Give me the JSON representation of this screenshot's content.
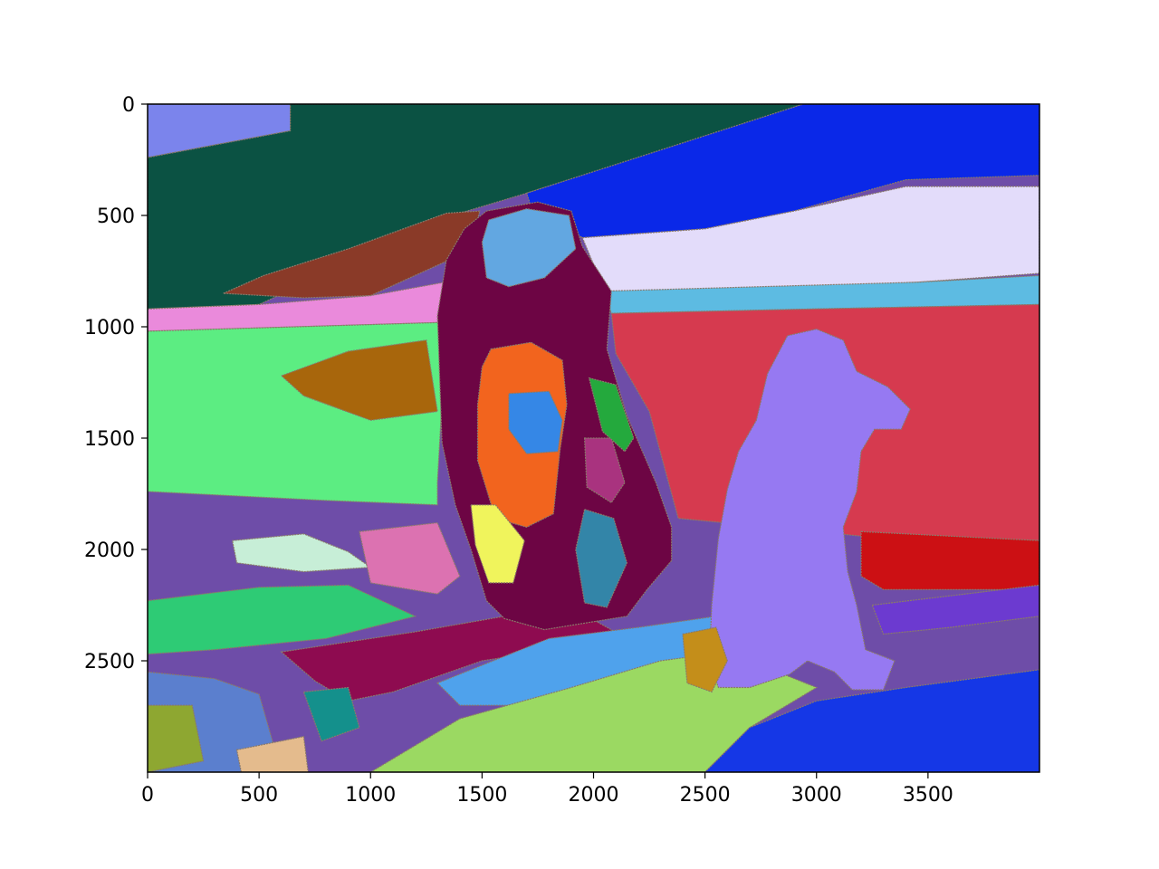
{
  "chart_data": {
    "type": "heatmap",
    "description_kind": "segmentation-label-image",
    "title": "",
    "xlabel": "",
    "ylabel": "",
    "xlim": [
      0,
      4000
    ],
    "ylim": [
      3000,
      0
    ],
    "x_ticks": [
      0,
      500,
      1000,
      1500,
      2000,
      2500,
      3000,
      3500
    ],
    "y_ticks": [
      0,
      500,
      1000,
      1500,
      2000,
      2500
    ],
    "x_tick_labels": [
      "0",
      "500",
      "1000",
      "1500",
      "2000",
      "2500",
      "3000",
      "3500"
    ],
    "y_tick_labels": [
      "0",
      "500",
      "1000",
      "1500",
      "2000",
      "2500"
    ],
    "grid": false,
    "colors": {
      "frame": "#000000",
      "background": "#ffffff"
    },
    "regions": [
      {
        "name": "top-left-sky",
        "color": "#7b84ec",
        "points": [
          [
            0,
            0
          ],
          [
            640,
            0
          ],
          [
            640,
            120
          ],
          [
            0,
            240
          ]
        ]
      },
      {
        "name": "dark-green-hill",
        "color": "#0b5243",
        "points": [
          [
            0,
            240
          ],
          [
            640,
            120
          ],
          [
            640,
            0
          ],
          [
            2940,
            0
          ],
          [
            2600,
            120
          ],
          [
            1700,
            400
          ],
          [
            1400,
            490
          ],
          [
            1100,
            650
          ],
          [
            800,
            760
          ],
          [
            500,
            900
          ],
          [
            0,
            920
          ]
        ]
      },
      {
        "name": "brown-band",
        "color": "#8a3a28",
        "points": [
          [
            340,
            850
          ],
          [
            520,
            770
          ],
          [
            900,
            650
          ],
          [
            1340,
            490
          ],
          [
            1490,
            480
          ],
          [
            1440,
            660
          ],
          [
            1000,
            860
          ],
          [
            700,
            870
          ]
        ]
      },
      {
        "name": "pink-strip",
        "color": "#ea8adb",
        "points": [
          [
            0,
            920
          ],
          [
            500,
            900
          ],
          [
            1000,
            860
          ],
          [
            1440,
            780
          ],
          [
            1340,
            980
          ],
          [
            0,
            1020
          ]
        ]
      },
      {
        "name": "blue-sky-right",
        "color": "#0a28e8",
        "points": [
          [
            1700,
            400
          ],
          [
            2940,
            0
          ],
          [
            4000,
            0
          ],
          [
            4000,
            320
          ],
          [
            3400,
            340
          ],
          [
            2900,
            480
          ],
          [
            2500,
            560
          ],
          [
            1950,
            600
          ],
          [
            1720,
            460
          ]
        ]
      },
      {
        "name": "lavender-water",
        "color": "#e3dcfa",
        "points": [
          [
            1950,
            600
          ],
          [
            2500,
            560
          ],
          [
            2900,
            480
          ],
          [
            3400,
            370
          ],
          [
            4000,
            370
          ],
          [
            4000,
            760
          ],
          [
            3450,
            800
          ],
          [
            2600,
            850
          ],
          [
            2050,
            840
          ]
        ]
      },
      {
        "name": "light-blue-strip",
        "color": "#5dbbe2",
        "points": [
          [
            2050,
            840
          ],
          [
            3450,
            800
          ],
          [
            4000,
            770
          ],
          [
            4000,
            900
          ],
          [
            3000,
            920
          ],
          [
            2080,
            940
          ]
        ]
      },
      {
        "name": "red-field",
        "color": "#d63a4f",
        "points": [
          [
            2080,
            940
          ],
          [
            3000,
            920
          ],
          [
            4000,
            900
          ],
          [
            4000,
            1960
          ],
          [
            3300,
            1950
          ],
          [
            3000,
            1920
          ],
          [
            2380,
            1860
          ],
          [
            2250,
            1380
          ],
          [
            2100,
            1120
          ]
        ]
      },
      {
        "name": "crimson-patch",
        "color": "#cc1014",
        "points": [
          [
            3200,
            1920
          ],
          [
            4000,
            1960
          ],
          [
            4000,
            2180
          ],
          [
            3300,
            2180
          ],
          [
            3200,
            2120
          ]
        ]
      },
      {
        "name": "green-field",
        "color": "#5ced82",
        "points": [
          [
            0,
            1020
          ],
          [
            1340,
            980
          ],
          [
            1300,
            1700
          ],
          [
            1300,
            1800
          ],
          [
            800,
            1780
          ],
          [
            0,
            1740
          ]
        ]
      },
      {
        "name": "ochre-patch",
        "color": "#a8660c",
        "points": [
          [
            600,
            1220
          ],
          [
            900,
            1110
          ],
          [
            1250,
            1060
          ],
          [
            1300,
            1380
          ],
          [
            1000,
            1420
          ],
          [
            700,
            1310
          ]
        ]
      },
      {
        "name": "pale-green-patch",
        "color": "#c7eed7",
        "points": [
          [
            380,
            1960
          ],
          [
            700,
            1930
          ],
          [
            900,
            2010
          ],
          [
            1000,
            2080
          ],
          [
            700,
            2100
          ],
          [
            400,
            2060
          ]
        ]
      },
      {
        "name": "rose-patch",
        "color": "#dc72b1",
        "points": [
          [
            950,
            1920
          ],
          [
            1300,
            1880
          ],
          [
            1400,
            2120
          ],
          [
            1300,
            2200
          ],
          [
            1000,
            2150
          ]
        ]
      },
      {
        "name": "mint-band",
        "color": "#2ecb75",
        "points": [
          [
            0,
            2230
          ],
          [
            500,
            2170
          ],
          [
            900,
            2160
          ],
          [
            1200,
            2300
          ],
          [
            800,
            2400
          ],
          [
            300,
            2450
          ],
          [
            0,
            2470
          ]
        ]
      },
      {
        "name": "magenta-ground",
        "color": "#8e0b50",
        "points": [
          [
            600,
            2460
          ],
          [
            1200,
            2370
          ],
          [
            1600,
            2300
          ],
          [
            1900,
            2260
          ],
          [
            2150,
            2400
          ],
          [
            1500,
            2500
          ],
          [
            1100,
            2640
          ],
          [
            900,
            2680
          ],
          [
            750,
            2590
          ]
        ]
      },
      {
        "name": "sky-blue-ground",
        "color": "#4fa2ec",
        "points": [
          [
            1300,
            2600
          ],
          [
            1800,
            2400
          ],
          [
            2200,
            2350
          ],
          [
            2550,
            2300
          ],
          [
            2600,
            2480
          ],
          [
            2300,
            2650
          ],
          [
            1800,
            2700
          ],
          [
            1400,
            2700
          ]
        ]
      },
      {
        "name": "lime-ground",
        "color": "#9bd962",
        "points": [
          [
            1000,
            3000
          ],
          [
            1400,
            2760
          ],
          [
            1900,
            2620
          ],
          [
            2300,
            2500
          ],
          [
            2600,
            2460
          ],
          [
            3000,
            2620
          ],
          [
            2700,
            2800
          ],
          [
            2500,
            3000
          ]
        ]
      },
      {
        "name": "blue-ground-right",
        "color": "#1537e6",
        "points": [
          [
            2500,
            3000
          ],
          [
            2700,
            2800
          ],
          [
            3000,
            2680
          ],
          [
            3400,
            2620
          ],
          [
            4000,
            2540
          ],
          [
            4000,
            3000
          ]
        ]
      },
      {
        "name": "violet-band-right",
        "color": "#6c3ad0",
        "points": [
          [
            3250,
            2250
          ],
          [
            4000,
            2160
          ],
          [
            4000,
            2300
          ],
          [
            3600,
            2350
          ],
          [
            3300,
            2380
          ]
        ]
      },
      {
        "name": "slate-blue-corner",
        "color": "#5b7fce",
        "points": [
          [
            0,
            2550
          ],
          [
            300,
            2580
          ],
          [
            500,
            2650
          ],
          [
            600,
            3000
          ],
          [
            0,
            3000
          ]
        ]
      },
      {
        "name": "olive-corner",
        "color": "#8ea731",
        "points": [
          [
            0,
            2700
          ],
          [
            200,
            2700
          ],
          [
            250,
            2950
          ],
          [
            0,
            3000
          ]
        ]
      },
      {
        "name": "tan-corner",
        "color": "#e4bb8d",
        "points": [
          [
            400,
            2900
          ],
          [
            700,
            2840
          ],
          [
            720,
            3000
          ],
          [
            420,
            3000
          ]
        ]
      },
      {
        "name": "teal-patch",
        "color": "#14908c",
        "points": [
          [
            700,
            2640
          ],
          [
            900,
            2620
          ],
          [
            950,
            2800
          ],
          [
            780,
            2860
          ]
        ]
      },
      {
        "name": "dog-left-body",
        "color": "#6d0544",
        "points": [
          [
            1320,
            1520
          ],
          [
            1300,
            950
          ],
          [
            1340,
            700
          ],
          [
            1420,
            560
          ],
          [
            1520,
            480
          ],
          [
            1750,
            440
          ],
          [
            1900,
            480
          ],
          [
            1950,
            640
          ],
          [
            2080,
            840
          ],
          [
            2060,
            1100
          ],
          [
            2150,
            1400
          ],
          [
            2280,
            1700
          ],
          [
            2350,
            1900
          ],
          [
            2350,
            2050
          ],
          [
            2240,
            2180
          ],
          [
            2150,
            2300
          ],
          [
            1780,
            2360
          ],
          [
            1600,
            2310
          ],
          [
            1520,
            2230
          ],
          [
            1450,
            2000
          ],
          [
            1380,
            1800
          ]
        ]
      },
      {
        "name": "dog-left-face",
        "color": "#62a7e1",
        "points": [
          [
            1530,
            520
          ],
          [
            1700,
            470
          ],
          [
            1890,
            500
          ],
          [
            1920,
            650
          ],
          [
            1780,
            780
          ],
          [
            1620,
            820
          ],
          [
            1520,
            780
          ],
          [
            1500,
            620
          ]
        ]
      },
      {
        "name": "dog-left-chest",
        "color": "#f2641e",
        "points": [
          [
            1540,
            1100
          ],
          [
            1720,
            1070
          ],
          [
            1860,
            1150
          ],
          [
            1880,
            1350
          ],
          [
            1850,
            1550
          ],
          [
            1820,
            1840
          ],
          [
            1700,
            1900
          ],
          [
            1560,
            1860
          ],
          [
            1480,
            1600
          ],
          [
            1480,
            1350
          ],
          [
            1500,
            1180
          ]
        ]
      },
      {
        "name": "dog-left-blue-fur",
        "color": "#3587e6",
        "points": [
          [
            1620,
            1300
          ],
          [
            1800,
            1290
          ],
          [
            1860,
            1420
          ],
          [
            1840,
            1560
          ],
          [
            1700,
            1570
          ],
          [
            1620,
            1460
          ]
        ]
      },
      {
        "name": "dog-left-yellow",
        "color": "#f0f45c",
        "points": [
          [
            1450,
            1800
          ],
          [
            1560,
            1800
          ],
          [
            1690,
            1960
          ],
          [
            1640,
            2150
          ],
          [
            1530,
            2150
          ],
          [
            1470,
            1980
          ]
        ]
      },
      {
        "name": "dog-left-steel",
        "color": "#3385a8",
        "points": [
          [
            1960,
            1820
          ],
          [
            2090,
            1860
          ],
          [
            2150,
            2060
          ],
          [
            2060,
            2260
          ],
          [
            1960,
            2240
          ],
          [
            1920,
            2000
          ]
        ]
      },
      {
        "name": "dog-left-purple-patch",
        "color": "#a9337f",
        "points": [
          [
            1960,
            1500
          ],
          [
            2080,
            1500
          ],
          [
            2140,
            1700
          ],
          [
            2080,
            1790
          ],
          [
            1970,
            1720
          ]
        ]
      },
      {
        "name": "dog-left-green-streak",
        "color": "#24a93d",
        "points": [
          [
            1980,
            1230
          ],
          [
            2100,
            1260
          ],
          [
            2180,
            1500
          ],
          [
            2140,
            1560
          ],
          [
            2040,
            1470
          ]
        ]
      },
      {
        "name": "dog-right-body",
        "color": "#9679f2",
        "points": [
          [
            2520,
            2500
          ],
          [
            2530,
            2250
          ],
          [
            2560,
            1950
          ],
          [
            2600,
            1730
          ],
          [
            2650,
            1560
          ],
          [
            2730,
            1420
          ],
          [
            2780,
            1210
          ],
          [
            2870,
            1040
          ],
          [
            3000,
            1010
          ],
          [
            3120,
            1060
          ],
          [
            3180,
            1200
          ],
          [
            3320,
            1270
          ],
          [
            3420,
            1370
          ],
          [
            3380,
            1460
          ],
          [
            3260,
            1460
          ],
          [
            3200,
            1560
          ],
          [
            3180,
            1740
          ],
          [
            3120,
            1900
          ],
          [
            3140,
            2100
          ],
          [
            3180,
            2250
          ],
          [
            3220,
            2450
          ],
          [
            3350,
            2500
          ],
          [
            3300,
            2630
          ],
          [
            3160,
            2630
          ],
          [
            3080,
            2550
          ],
          [
            2960,
            2500
          ],
          [
            2880,
            2560
          ],
          [
            2700,
            2620
          ],
          [
            2560,
            2620
          ]
        ]
      },
      {
        "name": "dog-right-gold-shadow",
        "color": "#c48e1a",
        "points": [
          [
            2400,
            2380
          ],
          [
            2550,
            2350
          ],
          [
            2600,
            2500
          ],
          [
            2530,
            2640
          ],
          [
            2420,
            2600
          ]
        ]
      }
    ]
  }
}
